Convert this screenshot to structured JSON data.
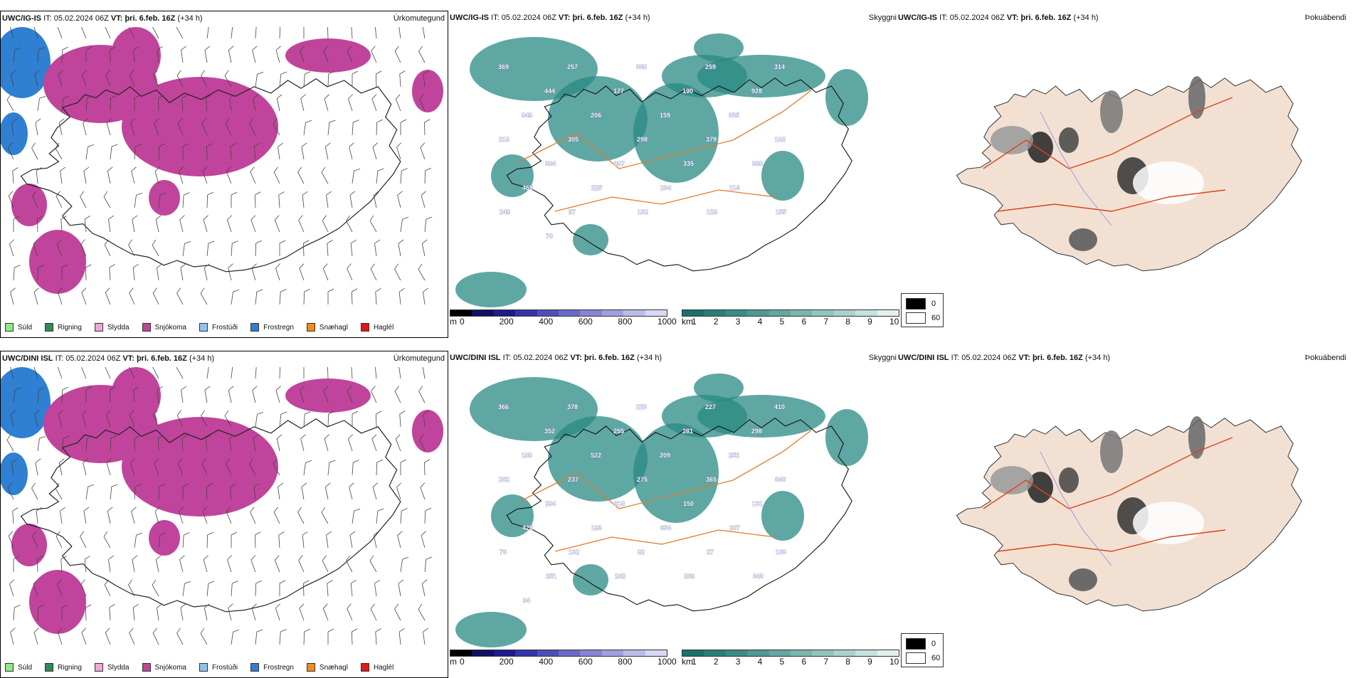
{
  "rows": [
    {
      "model": "UWC/IG-IS",
      "it_label": "IT:",
      "it_value": "05.02.2024 06Z",
      "vt_label": "VT:",
      "vt_value": "þri. 6.feb. 16Z",
      "lead": "(+34 h)",
      "titles": [
        "Úrkomutegund",
        "Skyggni",
        "Þokuábendi"
      ]
    },
    {
      "model": "UWC/DINI ISL",
      "it_label": "IT:",
      "it_value": "05.02.2024 06Z",
      "vt_label": "VT:",
      "vt_value": "þri. 6.feb. 16Z",
      "lead": "(+34 h)",
      "titles": [
        "Úrkomutegund",
        "Skyggni",
        "Þokuábendi"
      ]
    }
  ],
  "precip_legend": [
    {
      "label": "Súld",
      "color": "#8ee88a"
    },
    {
      "label": "Rigning",
      "color": "#2e8b57"
    },
    {
      "label": "Slydda",
      "color": "#f4a6d2"
    },
    {
      "label": "Snjókoma",
      "color": "#c0449b"
    },
    {
      "label": "Frostúði",
      "color": "#8fc2ef"
    },
    {
      "label": "Frostregn",
      "color": "#2f7fd2"
    },
    {
      "label": "Snæhagl",
      "color": "#f08c1e"
    },
    {
      "label": "Haglél",
      "color": "#e01818"
    }
  ],
  "height_bar": {
    "unit": "m",
    "ticks": [
      "0",
      "200",
      "400",
      "600",
      "800",
      "1000"
    ],
    "colors": [
      "#000000",
      "#101060",
      "#1c1c8c",
      "#3434a8",
      "#4f4fb8",
      "#6a6ac6",
      "#8585d2",
      "#a0a0de",
      "#bcbce9",
      "#d8d8f4"
    ]
  },
  "vis_bar": {
    "unit": "km",
    "ticks": [
      "1",
      "2",
      "3",
      "4",
      "5",
      "6",
      "7",
      "8",
      "9",
      "10"
    ],
    "colors": [
      "#1d6f6a",
      "#2b7e78",
      "#3b8c86",
      "#4e9a94",
      "#63a8a2",
      "#7ab6b0",
      "#92c5bf",
      "#abd3ce",
      "#c6e2de",
      "#e2f1ee"
    ]
  },
  "fog_legend": [
    "0",
    "60"
  ],
  "map_labels": {
    "row1": [
      "369",
      "257",
      "368",
      "259",
      "314",
      "444",
      "177",
      "190",
      "928",
      "849",
      "206",
      "159",
      "335",
      "219",
      "305",
      "298",
      "379",
      "182",
      "394",
      "387",
      "335",
      "390",
      "465",
      "225",
      "234",
      "114",
      "249",
      "97",
      "132",
      "128",
      "155",
      "78"
    ],
    "row2": [
      "366",
      "378",
      "223",
      "227",
      "410",
      "352",
      "255",
      "281",
      "298",
      "188",
      "522",
      "209",
      "252",
      "262",
      "237",
      "275",
      "365",
      "646",
      "294",
      "310",
      "150",
      "131",
      "425",
      "183",
      "654",
      "207",
      "76",
      "132",
      "82",
      "27",
      "163",
      "251",
      "242",
      "269",
      "643",
      "84"
    ]
  }
}
